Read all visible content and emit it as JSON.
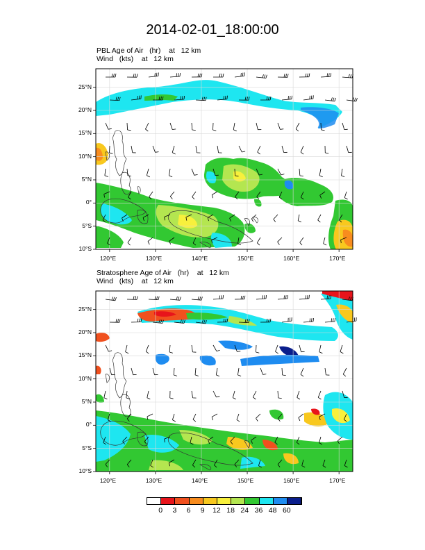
{
  "title": "2014-02-01_18:00:00",
  "panels": [
    {
      "id": "pbl",
      "line1": {
        "field": "PBL Age of Air",
        "units": "(hr)",
        "level": "at   12 km"
      },
      "line2": {
        "field": "Wind",
        "units": "(kts)",
        "level": "at   12 km"
      }
    },
    {
      "id": "strat",
      "line1": {
        "field": "Stratosphere Age of Air",
        "units": "(hr)",
        "level": "at   12 km"
      },
      "line2": {
        "field": "Wind",
        "units": "(kts)",
        "level": "at   12 km"
      }
    }
  ],
  "map": {
    "lon_range": [
      117,
      173
    ],
    "lat_range": [
      -10,
      29
    ],
    "lon_ticks": [
      "120°E",
      "130°E",
      "140°E",
      "150°E",
      "160°E",
      "170°E"
    ],
    "lat_ticks": [
      "25°N",
      "20°N",
      "15°N",
      "10°N",
      "5°N",
      "0°",
      "5°S",
      "10°S"
    ],
    "gridlines": true
  },
  "colorbar": {
    "labels": [
      "0",
      "3",
      "6",
      "9",
      "12",
      "18",
      "24",
      "36",
      "48",
      "60"
    ],
    "colors": [
      "#ffffff",
      "#e8141b",
      "#f0501e",
      "#f88c1e",
      "#f8c81e",
      "#f8f03c",
      "#b4e650",
      "#32c832",
      "#1ee6f0",
      "#1e8cf0",
      "#0a1e8c"
    ]
  }
}
